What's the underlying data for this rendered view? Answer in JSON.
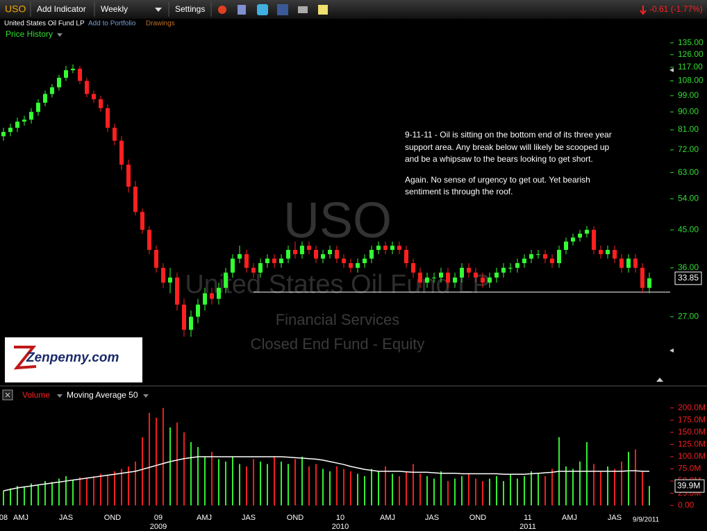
{
  "toolbar": {
    "symbol": "USO",
    "add_indicator": "Add Indicator",
    "interval": "Weekly",
    "settings": "Settings",
    "change": "-0.61 (-1.77%)"
  },
  "subbar": {
    "name": "United States Oil Fund LP",
    "add_to_portfolio": "Add to Portfolio",
    "drawings": "Drawings"
  },
  "annotation": [
    "9-11-11 - Oil is sitting on the bottom end of its three year",
    "support area. Any break below will likely be scooped up",
    "and be a whipsaw to the bears looking to get short.",
    "Again. No sense of urgency to get out. Yet bearish",
    "sentiment is through the roof."
  ],
  "watermark": {
    "symbol": "USO",
    "name": "United States Oil Fund LP",
    "sector": "Financial Services",
    "industry": "Closed End Fund - Equity"
  },
  "logo": "Zenpenny.com",
  "chart_data": [
    {
      "type": "candlestick",
      "title": "Price History",
      "log_scale": true,
      "up_color": "#33ff33",
      "down_color": "#ff2020",
      "open": [
        78,
        80,
        82,
        85,
        86,
        90,
        95,
        100,
        104,
        110,
        115,
        116,
        108,
        100,
        97,
        92,
        82,
        76,
        66,
        58,
        50,
        45,
        40,
        36,
        33,
        34,
        29,
        25,
        27,
        29,
        31,
        30,
        32,
        35,
        38,
        39,
        36,
        35,
        37,
        38,
        37,
        38,
        40,
        39,
        41,
        40,
        38,
        39,
        40,
        38,
        37,
        36,
        37,
        38,
        40,
        41,
        40,
        41,
        40,
        37,
        35,
        33,
        34,
        34,
        35,
        33,
        34,
        36,
        35,
        34,
        33,
        34,
        35,
        36,
        36,
        37,
        38,
        39,
        39,
        38,
        37,
        40,
        42,
        43,
        44,
        45,
        40,
        39,
        40,
        38,
        36,
        38,
        36,
        32
      ],
      "high": [
        82,
        84,
        87,
        88,
        92,
        97,
        102,
        106,
        112,
        118,
        119,
        118,
        110,
        102,
        99,
        94,
        84,
        78,
        68,
        60,
        51,
        46,
        41,
        37,
        36,
        35,
        30,
        28,
        30,
        32,
        32,
        33,
        36,
        39,
        41,
        40,
        37,
        38,
        39,
        39,
        39,
        41,
        42,
        42,
        42,
        41,
        40,
        41,
        41,
        39,
        38,
        38,
        39,
        41,
        42,
        42,
        42,
        42,
        41,
        38,
        36,
        35,
        35,
        36,
        36,
        35,
        37,
        37,
        36,
        35,
        35,
        36,
        37,
        37,
        38,
        39,
        40,
        40,
        40,
        39,
        41,
        43,
        44,
        45,
        46,
        46,
        41,
        41,
        41,
        39,
        39,
        39,
        37,
        35
      ],
      "low": [
        76,
        78,
        80,
        83,
        84,
        88,
        93,
        98,
        102,
        108,
        113,
        106,
        98,
        95,
        90,
        80,
        74,
        64,
        56,
        49,
        44,
        39,
        35,
        32,
        31,
        28,
        24,
        24,
        26,
        28,
        29,
        29,
        31,
        34,
        37,
        35,
        34,
        34,
        36,
        36,
        36,
        37,
        38,
        38,
        39,
        37,
        37,
        38,
        37,
        36,
        35,
        35,
        36,
        37,
        39,
        39,
        39,
        39,
        36,
        34,
        32,
        32,
        33,
        33,
        32,
        32,
        33,
        34,
        33,
        32,
        32,
        33,
        34,
        35,
        35,
        36,
        37,
        38,
        37,
        36,
        36,
        39,
        41,
        42,
        43,
        39,
        38,
        38,
        37,
        35,
        35,
        35,
        31,
        31
      ],
      "close": [
        80,
        82,
        85,
        86,
        90,
        95,
        100,
        104,
        110,
        115,
        116,
        108,
        100,
        97,
        92,
        82,
        76,
        66,
        58,
        50,
        45,
        40,
        36,
        33,
        34,
        29,
        25,
        27,
        29,
        31,
        30,
        32,
        35,
        38,
        39,
        36,
        35,
        37,
        38,
        37,
        38,
        40,
        39,
        41,
        40,
        38,
        39,
        40,
        38,
        37,
        36,
        37,
        38,
        40,
        41,
        40,
        41,
        40,
        37,
        35,
        33,
        34,
        34,
        35,
        33,
        34,
        36,
        35,
        34,
        33,
        34,
        35,
        36,
        36,
        37,
        38,
        39,
        39,
        38,
        37,
        40,
        42,
        43,
        44,
        45,
        40,
        39,
        40,
        38,
        36,
        38,
        36,
        32,
        33.85
      ],
      "ylim": [
        18.2,
        144.6
      ],
      "yticks": [
        {
          "value": 27,
          "label": "27.00"
        },
        {
          "value": 36,
          "label": "36.00"
        },
        {
          "value": 45,
          "label": "45.00"
        },
        {
          "value": 54,
          "label": "54.00"
        },
        {
          "value": 63,
          "label": "63.00"
        },
        {
          "value": 72,
          "label": "72.00"
        },
        {
          "value": 81,
          "label": "81.00"
        },
        {
          "value": 90,
          "label": "90.00"
        },
        {
          "value": 99,
          "label": "99.00"
        },
        {
          "value": 108,
          "label": "108.00"
        },
        {
          "value": 117,
          "label": "117.00"
        },
        {
          "value": 126,
          "label": "126.00"
        },
        {
          "value": 135,
          "label": "135.00"
        }
      ],
      "support_line": 31.2,
      "support_color": "#ffffff"
    },
    {
      "type": "volume",
      "title": "Volume",
      "indicator": "Moving Average 50",
      "up_color": "#33ee33",
      "down_color": "#ee2020",
      "line_color": "#ffffff",
      "values": [
        30,
        35,
        40,
        38,
        45,
        42,
        50,
        48,
        55,
        60,
        52,
        58,
        55,
        60,
        65,
        62,
        70,
        75,
        80,
        90,
        140,
        190,
        180,
        200,
        160,
        170,
        150,
        130,
        120,
        100,
        110,
        95,
        90,
        100,
        85,
        80,
        95,
        90,
        85,
        100,
        90,
        85,
        95,
        100,
        80,
        85,
        75,
        70,
        80,
        75,
        70,
        65,
        60,
        75,
        70,
        80,
        65,
        60,
        70,
        85,
        65,
        60,
        55,
        70,
        50,
        55,
        60,
        65,
        55,
        50,
        55,
        60,
        50,
        65,
        55,
        60,
        70,
        65,
        60,
        75,
        140,
        80,
        75,
        90,
        130,
        85,
        70,
        80,
        75,
        90,
        110,
        115,
        70,
        39.9
      ],
      "last_value_label": "39.9M",
      "moving_average": [
        30,
        33,
        36,
        38,
        40,
        42,
        44,
        46,
        48,
        50,
        52,
        54,
        56,
        58,
        60,
        62,
        64,
        66,
        68,
        70,
        74,
        78,
        82,
        86,
        90,
        93,
        96,
        98,
        100,
        100,
        100,
        100,
        100,
        100,
        100,
        100,
        100,
        100,
        100,
        100,
        100,
        99,
        98,
        97,
        96,
        95,
        93,
        90,
        87,
        84,
        80,
        77,
        74,
        72,
        70,
        70,
        70,
        70,
        69,
        68,
        68,
        68,
        67,
        66,
        66,
        66,
        65,
        65,
        65,
        65,
        65,
        65,
        64,
        64,
        64,
        64,
        65,
        66,
        67,
        68,
        70,
        70,
        70,
        70,
        70,
        70,
        70,
        70,
        70,
        70,
        71,
        71,
        70,
        70
      ],
      "ylim": [
        -14,
        211
      ],
      "yticks": [
        {
          "value": 0,
          "label": "0.00"
        },
        {
          "value": 25,
          "label": "25.0M"
        },
        {
          "value": 50,
          "label": "50.0M"
        },
        {
          "value": 75,
          "label": "75.0M"
        },
        {
          "value": 100,
          "label": "100.0M"
        },
        {
          "value": 125,
          "label": "125.0M"
        },
        {
          "value": 150,
          "label": "150.0M"
        },
        {
          "value": 175,
          "label": "175.0M"
        },
        {
          "value": 200,
          "label": "200.0M"
        }
      ],
      "xticks": [
        {
          "value": 0,
          "label": "08"
        },
        {
          "value": 2.5,
          "label": "AMJ"
        },
        {
          "value": 9,
          "label": "JAS"
        },
        {
          "value": 15.7,
          "label": "OND"
        },
        {
          "value": 22.3,
          "label": "09"
        },
        {
          "value": 28.9,
          "label": "AMJ"
        },
        {
          "value": 35.3,
          "label": "JAS"
        },
        {
          "value": 42,
          "label": "OND"
        },
        {
          "value": 48.5,
          "label": "10"
        },
        {
          "value": 55.3,
          "label": "AMJ"
        },
        {
          "value": 61.7,
          "label": "JAS"
        },
        {
          "value": 68.3,
          "label": "OND"
        },
        {
          "value": 75.5,
          "label": "11"
        },
        {
          "value": 81.5,
          "label": "AMJ"
        },
        {
          "value": 88,
          "label": "JAS"
        }
      ],
      "year_ticks": [
        {
          "value": 22.3,
          "label": "2009"
        },
        {
          "value": 48.5,
          "label": "2010"
        },
        {
          "value": 75.5,
          "label": "2011"
        }
      ],
      "last_date": "9/9/2011"
    }
  ]
}
